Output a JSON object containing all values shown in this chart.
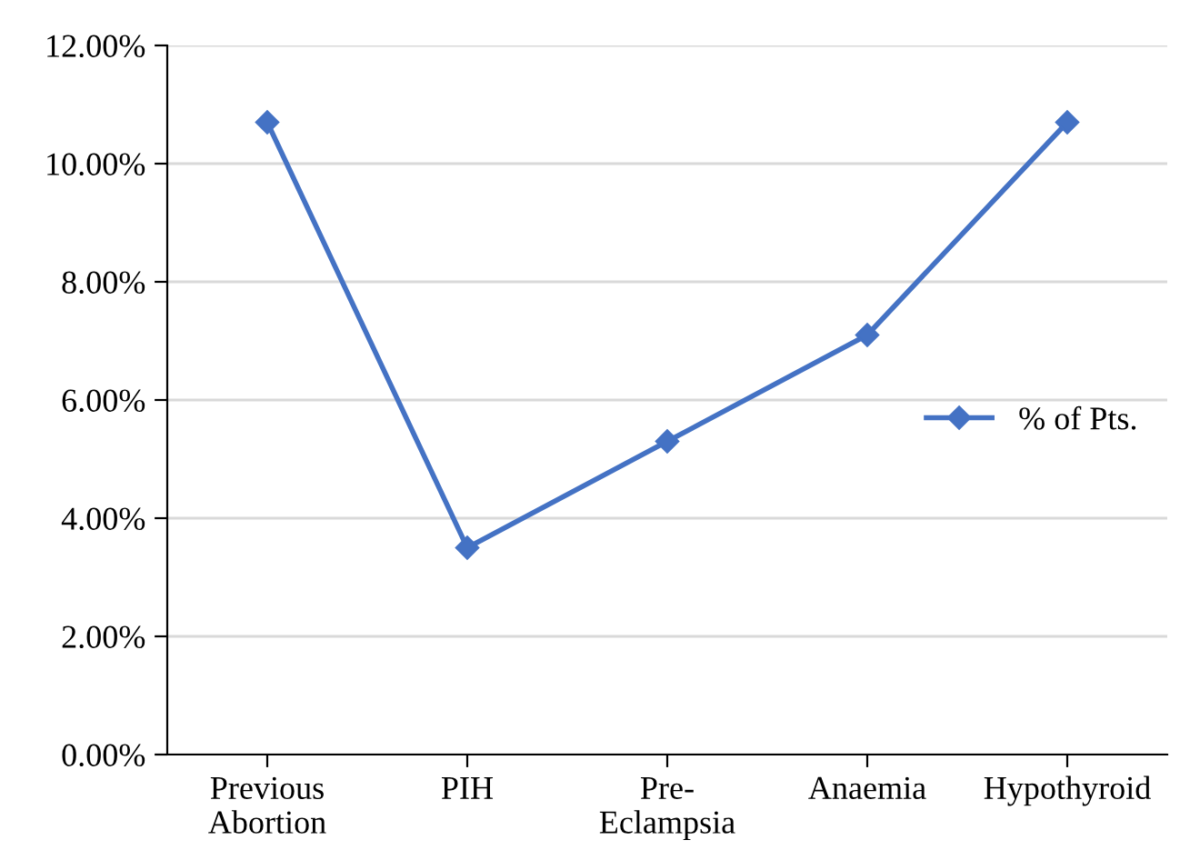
{
  "chart_data": {
    "type": "line",
    "categories": [
      "Previous\nAbortion",
      "PIH",
      "Pre-\nEclampsia",
      "Anaemia",
      "Hypothyroid"
    ],
    "series": [
      {
        "name": "% of Pts.",
        "color": "#4472c4",
        "values": [
          10.7,
          3.5,
          5.3,
          7.1,
          10.7
        ]
      }
    ],
    "ylim": [
      0,
      12
    ],
    "yticks": [
      {
        "value": 0,
        "label": "0.00%"
      },
      {
        "value": 2,
        "label": "2.00%"
      },
      {
        "value": 4,
        "label": "4.00%"
      },
      {
        "value": 6,
        "label": "6.00%"
      },
      {
        "value": 8,
        "label": "8.00%"
      },
      {
        "value": 10,
        "label": "10.00%"
      },
      {
        "value": 12,
        "label": "12.00%"
      }
    ],
    "grid": "y",
    "legend": "right",
    "marker": "diamond",
    "line_style": "solid"
  }
}
